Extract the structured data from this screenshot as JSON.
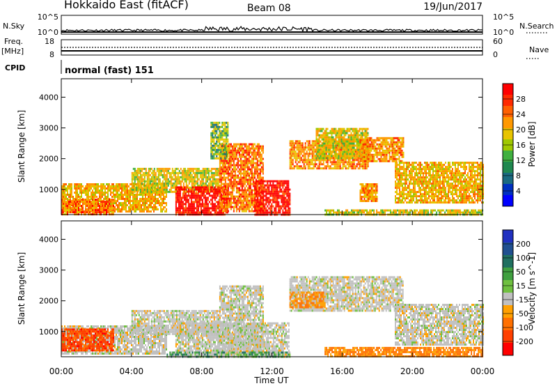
{
  "header": {
    "station": "Hokkaido East (fitACF)",
    "beam": "Beam 08",
    "date": "19/Jun/2017"
  },
  "top_panels": {
    "nsky_label": "N.Sky",
    "nsky_ticks": [
      "10^5",
      "10^0"
    ],
    "nsearch_label": "N.Search",
    "nsearch_ticks": [
      "10^5",
      "10^0"
    ],
    "freq_label_1": "Freq.",
    "freq_label_2": "[MHz]",
    "freq_ticks": [
      "18",
      "8"
    ],
    "nave_label": "Nave",
    "nave_ticks": [
      "60",
      "0"
    ],
    "cpid_label": "CPID",
    "cpid_value": "normal (fast) 151"
  },
  "power_colorbar": {
    "title": "Power [dB]",
    "ticks": [
      "28",
      "24",
      "20",
      "16",
      "12",
      "8",
      "4"
    ],
    "colors": [
      "#ff0000",
      "#ff2a00",
      "#ff6000",
      "#ff9800",
      "#e8c400",
      "#a0c800",
      "#40b040",
      "#208850",
      "#1a6a80",
      "#0030c0",
      "#0000ff"
    ]
  },
  "velocity_colorbar": {
    "title": "Velocity [m s^-1]",
    "ticks": [
      "200",
      "100",
      "50",
      "15",
      "-15",
      "-50",
      "-100",
      "-200"
    ],
    "colors": [
      "#2030c0",
      "#205090",
      "#207060",
      "#40a040",
      "#70c040",
      "#c0c0c0",
      "#ffa000",
      "#ff7000",
      "#ff4000",
      "#ff0000"
    ]
  },
  "chart_data": [
    {
      "type": "heatmap",
      "title": "Power [dB]",
      "xlabel": "Time UT",
      "ylabel": "Slant Range [km]",
      "x_ticks": [
        "00:00",
        "04:00",
        "08:00",
        "12:00",
        "16:00",
        "20:00",
        "00:00"
      ],
      "y_ticks": [
        1000,
        2000,
        3000,
        4000
      ],
      "xlim": [
        0,
        24
      ],
      "ylim": [
        180,
        4600
      ],
      "bands": [
        {
          "t0": 0.0,
          "t1": 6.0,
          "r0": 300,
          "r1": 1200,
          "value": 20
        },
        {
          "t0": 0.0,
          "t1": 3.0,
          "r0": 200,
          "r1": 700,
          "value": 24
        },
        {
          "t0": 4.0,
          "t1": 9.0,
          "r0": 900,
          "r1": 1700,
          "value": 18
        },
        {
          "t0": 6.5,
          "t1": 9.5,
          "r0": 200,
          "r1": 1100,
          "value": 30
        },
        {
          "t0": 9.0,
          "t1": 11.5,
          "r0": 300,
          "r1": 2500,
          "value": 24
        },
        {
          "t0": 11.0,
          "t1": 13.0,
          "r0": 200,
          "r1": 1300,
          "value": 30
        },
        {
          "t0": 13.0,
          "t1": 17.5,
          "r0": 1700,
          "r1": 2600,
          "value": 22
        },
        {
          "t0": 14.5,
          "t1": 17.5,
          "r0": 2000,
          "r1": 3000,
          "value": 18
        },
        {
          "t0": 17.0,
          "t1": 19.5,
          "r0": 1900,
          "r1": 2700,
          "value": 22
        },
        {
          "t0": 19.0,
          "t1": 24.0,
          "r0": 600,
          "r1": 1900,
          "value": 20
        },
        {
          "t0": 17.0,
          "t1": 18.0,
          "r0": 600,
          "r1": 1200,
          "value": 22
        },
        {
          "t0": 15.0,
          "t1": 24.0,
          "r0": 180,
          "r1": 350,
          "value": 18
        },
        {
          "t0": 8.5,
          "t1": 9.5,
          "r0": 2000,
          "r1": 3200,
          "value": 14
        }
      ]
    },
    {
      "type": "heatmap",
      "title": "Velocity [m s^-1]",
      "xlabel": "Time UT",
      "ylabel": "Slant Range [km]",
      "x_ticks": [
        "00:00",
        "04:00",
        "08:00",
        "12:00",
        "16:00",
        "20:00",
        "00:00"
      ],
      "y_ticks": [
        1000,
        2000,
        3000,
        4000
      ],
      "xlim": [
        0,
        24
      ],
      "ylim": [
        180,
        4600
      ],
      "bands": [
        {
          "t0": 0.0,
          "t1": 6.0,
          "r0": 300,
          "r1": 1200,
          "value": 0
        },
        {
          "t0": 4.0,
          "t1": 9.0,
          "r0": 900,
          "r1": 1700,
          "value": 0
        },
        {
          "t0": 6.5,
          "t1": 13.0,
          "r0": 200,
          "r1": 1300,
          "value": 0
        },
        {
          "t0": 9.0,
          "t1": 11.5,
          "r0": 300,
          "r1": 2500,
          "value": 0
        },
        {
          "t0": 13.0,
          "t1": 19.5,
          "r0": 1700,
          "r1": 2800,
          "value": 0
        },
        {
          "t0": 19.0,
          "t1": 24.0,
          "r0": 600,
          "r1": 1900,
          "value": 0
        },
        {
          "t0": 15.0,
          "t1": 24.0,
          "r0": 180,
          "r1": 500,
          "value": -60
        },
        {
          "t0": 6.0,
          "t1": 13.0,
          "r0": 180,
          "r1": 350,
          "value": 30
        },
        {
          "t0": 0.0,
          "t1": 3.0,
          "r0": 400,
          "r1": 1100,
          "value": -120
        },
        {
          "t0": 13.0,
          "t1": 15.0,
          "r0": 1800,
          "r1": 2300,
          "value": -40
        }
      ]
    }
  ]
}
